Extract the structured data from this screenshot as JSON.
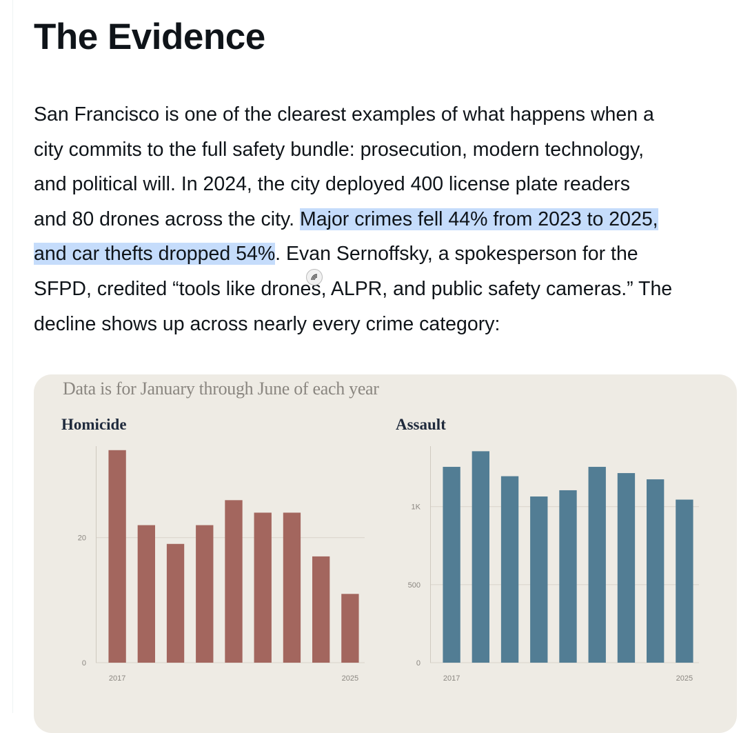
{
  "article": {
    "heading": "The Evidence",
    "lines": [
      {
        "pre": "San Francisco is one of the clearest examples of what happens when a",
        "hl": "",
        "post": ""
      },
      {
        "pre": "city commits to the full safety bundle: prosecution, modern technology,",
        "hl": "",
        "post": ""
      },
      {
        "pre": "and political will. In 2024, the city deployed 400 license plate readers",
        "hl": "",
        "post": ""
      },
      {
        "pre": "and 80 drones across the city. ",
        "hl": "Major crimes fell 44% from 2023 to 2025,",
        "post": ""
      },
      {
        "pre": "",
        "hl": "and car thefts dropped 54%",
        "post": ". Evan Sernoffsky, a spokesperson for the"
      },
      {
        "pre": "SFPD, credited “tools like drones, ALPR, and public safety cameras.” The",
        "hl": "",
        "post": ""
      },
      {
        "pre": "decline shows up across nearly every crime category:",
        "hl": "",
        "post": ""
      }
    ],
    "highlight_color": "#c5dcfb"
  },
  "chart_card": {
    "note": "Data is for January through June of each year",
    "background": "#eeebe4"
  },
  "chart_data": [
    {
      "type": "bar",
      "title": "Homicide",
      "x": [
        2017,
        2018,
        2019,
        2020,
        2021,
        2022,
        2023,
        2024,
        2025
      ],
      "values": [
        34,
        22,
        19,
        22,
        26,
        24,
        24,
        17,
        11
      ],
      "ylim": [
        0,
        34.2
      ],
      "yticks": [
        {
          "value": 0,
          "label": "0"
        },
        {
          "value": 20,
          "label": "20"
        }
      ],
      "xtick_labels": [
        {
          "index": 0,
          "label": "2017"
        },
        {
          "index": 8,
          "label": "2025"
        }
      ],
      "color": "#a3665e",
      "grid": true
    },
    {
      "type": "bar",
      "title": "Assault",
      "x": [
        2017,
        2018,
        2019,
        2020,
        2021,
        2022,
        2023,
        2024,
        2025
      ],
      "values": [
        1255,
        1355,
        1195,
        1065,
        1105,
        1255,
        1215,
        1175,
        1045
      ],
      "ylim": [
        0,
        1370
      ],
      "yticks": [
        {
          "value": 0,
          "label": "0"
        },
        {
          "value": 500,
          "label": "500"
        },
        {
          "value": 1000,
          "label": "1K"
        }
      ],
      "xtick_labels": [
        {
          "index": 0,
          "label": "2017"
        },
        {
          "index": 8,
          "label": "2025"
        }
      ],
      "color": "#527d94",
      "grid": true
    }
  ]
}
